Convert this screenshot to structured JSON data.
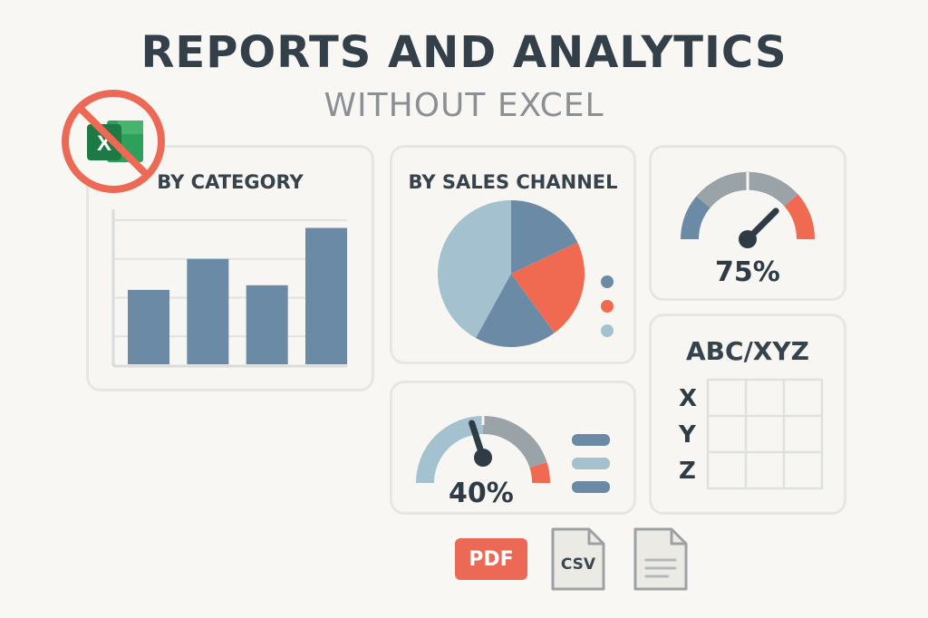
{
  "header": {
    "title": "REPORTS AND ANALYTICS",
    "subtitle": "WITHOUT EXCEL"
  },
  "no_excel_badge": {
    "icon": "no-excel-icon",
    "letter": "X",
    "colors": {
      "ring": "#ec6a55",
      "excel_dark": "#1e7a44",
      "excel_light": "#2ea05c"
    }
  },
  "category_card": {
    "title": "BY CATEGORY",
    "chart_data": {
      "type": "bar",
      "categories": [
        "",
        "",
        "",
        ""
      ],
      "values": [
        48,
        68,
        51,
        88
      ],
      "ylim": [
        0,
        100
      ],
      "grid": true,
      "color": "#6a8aa6"
    }
  },
  "channel_card": {
    "title": "BY SALES CHANNEL",
    "chart_data": {
      "type": "pie",
      "values": [
        18,
        22,
        18,
        42
      ],
      "colors": [
        "#6a8aa6",
        "#f06a52",
        "#6a8aa6",
        "#a3c1ce"
      ],
      "legend_dots": [
        "#6a8aa6",
        "#f06a52",
        "#a3c1ce"
      ],
      "legend": "right"
    }
  },
  "gauge_top": {
    "value_label": "75%",
    "value": 0.75
  },
  "gauge_bottom": {
    "value_label": "40%",
    "value": 0.4
  },
  "matrix_card": {
    "title": "ABC/XYZ",
    "rows": [
      "X",
      "Y",
      "Z"
    ]
  },
  "exports": {
    "pdf": "PDF",
    "csv": "CSV",
    "doc_icon": "document-icon"
  },
  "colors": {
    "blue": "#6a8aa6",
    "light_blue": "#a3c1ce",
    "coral": "#f06a52",
    "gray": "#9aa3a8"
  }
}
